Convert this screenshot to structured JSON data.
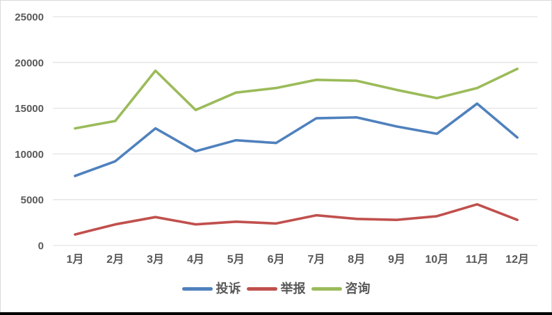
{
  "chart_data": {
    "type": "line",
    "title": "",
    "xlabel": "",
    "ylabel": "",
    "categories": [
      "1月",
      "2月",
      "3月",
      "4月",
      "5月",
      "6月",
      "7月",
      "8月",
      "9月",
      "10月",
      "11月",
      "12月"
    ],
    "series": [
      {
        "name": "投诉",
        "color": "#4F81BD",
        "values": [
          7600,
          9200,
          12800,
          10300,
          11500,
          11200,
          13900,
          14000,
          13000,
          12200,
          15500,
          11800
        ]
      },
      {
        "name": "举报",
        "color": "#C0504D",
        "values": [
          1200,
          2300,
          3100,
          2300,
          2600,
          2400,
          3300,
          2900,
          2800,
          3200,
          4500,
          2800
        ]
      },
      {
        "name": "咨询",
        "color": "#9BBB59",
        "values": [
          12800,
          13600,
          19100,
          14800,
          16700,
          17200,
          18100,
          18000,
          17000,
          16100,
          17200,
          19300
        ]
      }
    ],
    "ylim": [
      0,
      25000
    ],
    "y_ticks": [
      0,
      5000,
      10000,
      15000,
      20000,
      25000
    ],
    "grid": true,
    "legend_position": "bottom"
  },
  "colors": {
    "gridline": "#E3E3E3",
    "axis_text": "#595959",
    "chart_border": "#D9D9D9",
    "background": "#FFFFFF",
    "window_edge": "#000000"
  }
}
